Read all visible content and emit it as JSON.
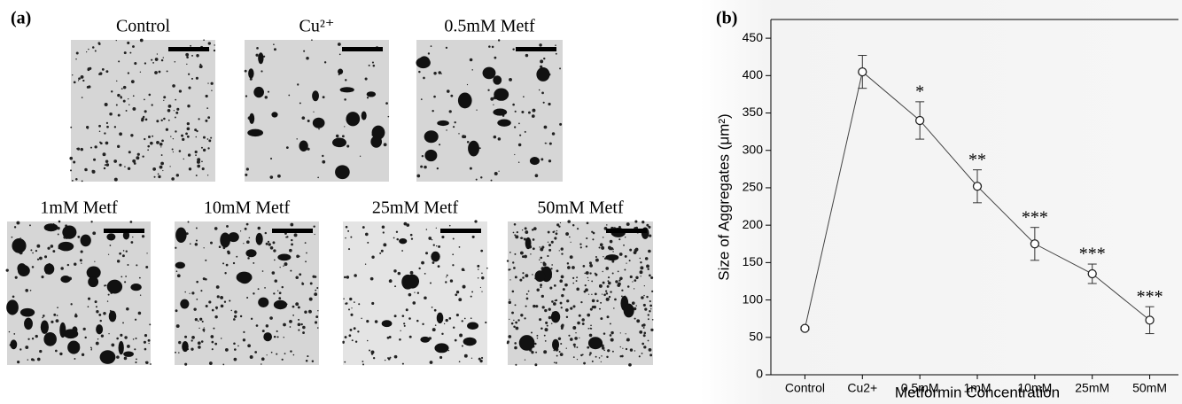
{
  "panel_a": {
    "label": "(a)",
    "images": [
      "Control",
      "Cu²⁺",
      "0.5mM Metf",
      "1mM Metf",
      "10mM Metf",
      "25mM Metf",
      "50mM Metf"
    ]
  },
  "chart_data": {
    "type": "line",
    "panel_label": "(b)",
    "x_label": "Metformin Concentration",
    "y_label": "Size of Aggregates (μm²)",
    "categories": [
      "Control",
      "Cu2+",
      "0.5mM",
      "1mM",
      "10mM",
      "25mM",
      "50mM"
    ],
    "values": [
      62,
      405,
      340,
      252,
      175,
      135,
      73
    ],
    "errors": [
      2,
      22,
      25,
      22,
      22,
      13,
      18
    ],
    "annotations": [
      null,
      null,
      "*",
      "**",
      "***",
      "***",
      "***"
    ],
    "color": "#444444",
    "ylim": [
      0,
      475
    ],
    "yticks": [
      0,
      50,
      100,
      150,
      200,
      250,
      300,
      350,
      400,
      450
    ]
  }
}
